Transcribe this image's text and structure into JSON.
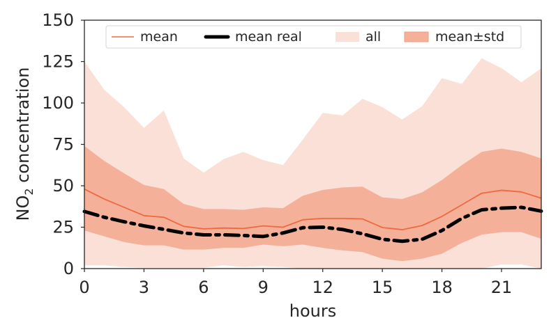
{
  "chart_data": {
    "type": "line",
    "title": "",
    "xlabel": "hours",
    "ylabel_main": "NO",
    "ylabel_sub": "2",
    "ylabel_rest": " concentration",
    "xlim": [
      0,
      23
    ],
    "ylim": [
      0,
      150
    ],
    "xticks": [
      0,
      3,
      6,
      9,
      12,
      15,
      18,
      21
    ],
    "xtick_labels": [
      "0",
      "3",
      "6",
      "9",
      "12",
      "15",
      "18",
      "21"
    ],
    "yticks": [
      0,
      25,
      50,
      75,
      100,
      125,
      150
    ],
    "ytick_labels": [
      "0",
      "25",
      "50",
      "75",
      "100",
      "125",
      "150"
    ],
    "grid": false,
    "legend": {
      "position": "top",
      "entries": [
        "mean",
        "mean real",
        "all",
        "mean±std"
      ]
    },
    "colors": {
      "mean": "#ee6a3e",
      "mean_real": "#000000",
      "all": "#fae0d6",
      "std": "#f5b09a"
    },
    "x": [
      0,
      1,
      2,
      3,
      4,
      5,
      6,
      7,
      8,
      9,
      10,
      11,
      12,
      13,
      14,
      15,
      16,
      17,
      18,
      19,
      20,
      21,
      22,
      23
    ],
    "series": [
      {
        "name": "mean",
        "values": [
          48,
          42,
          37,
          32,
          31,
          25.5,
          24,
          24.5,
          24.2,
          25.8,
          25,
          29.5,
          30.3,
          30.3,
          30,
          24.8,
          23.5,
          26,
          31.5,
          38.5,
          45.5,
          47.3,
          46.3,
          42.5
        ]
      },
      {
        "name": "mean real",
        "values": [
          34.5,
          31,
          28.3,
          25.8,
          23.7,
          21.5,
          20.4,
          20.4,
          20,
          19.4,
          21.5,
          24.7,
          25,
          23.6,
          21,
          17.7,
          16.5,
          17.7,
          23,
          30.3,
          35.5,
          36.5,
          37,
          34.7
        ]
      }
    ],
    "bands": [
      {
        "name": "all",
        "lower": [
          2,
          2,
          1,
          0.5,
          0.5,
          0.5,
          0.5,
          2,
          1,
          1.5,
          1,
          0,
          0,
          0,
          0,
          0,
          0,
          0,
          0,
          0,
          0,
          2.5,
          2.5,
          0
        ],
        "upper": [
          125,
          108,
          97.5,
          85,
          95.5,
          66.5,
          58,
          66,
          70.5,
          65.5,
          62.5,
          78,
          94,
          92.5,
          102.5,
          97.5,
          90,
          98,
          115,
          111.5,
          127,
          121,
          112.5,
          121
        ]
      },
      {
        "name": "mean±std",
        "lower": [
          23,
          19.5,
          16,
          14,
          14,
          11.5,
          11.5,
          12.5,
          12.5,
          14.5,
          13.5,
          14.5,
          12.5,
          11,
          10,
          6,
          4.5,
          6,
          9,
          15.5,
          20.5,
          22,
          22,
          18
        ],
        "upper": [
          74,
          65,
          57.5,
          50.5,
          48,
          39,
          36,
          36,
          35.5,
          37,
          36.5,
          44,
          47.5,
          49,
          49.5,
          43,
          42,
          46,
          53.5,
          62.5,
          70.5,
          72.5,
          70.5,
          66.5
        ]
      }
    ]
  }
}
